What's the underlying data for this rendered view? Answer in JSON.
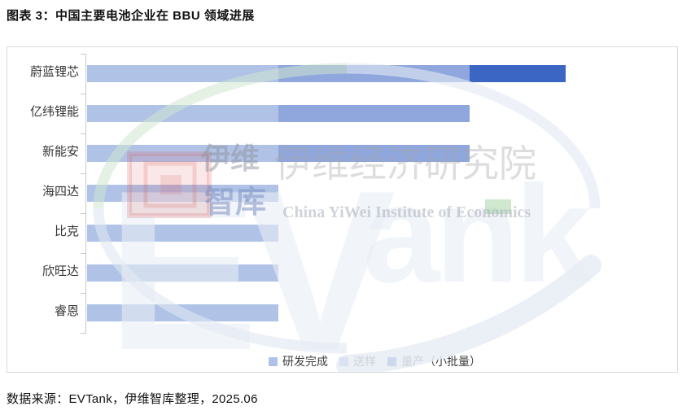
{
  "title": "图表 3：中国主要电池企业在 BBU 领域进展",
  "source": "数据来源：EVTank，伊维智库整理，2025.06",
  "chart_data": {
    "type": "bar",
    "orientation": "horizontal",
    "stacked": true,
    "title": "中国主要电池企业在BBU领域进展",
    "xlabel": "",
    "ylabel": "",
    "categories": [
      "蔚蓝锂芯",
      "亿纬锂能",
      "新能安",
      "海四达",
      "比克",
      "欣旺达",
      "睿恩"
    ],
    "series": [
      {
        "name": "研发完成",
        "color": "#b0c3e7",
        "values": [
          1,
          1,
          1,
          1,
          1,
          1,
          1
        ]
      },
      {
        "name": "送样",
        "color": "#8fa7dc",
        "values": [
          1,
          1,
          1,
          0,
          0,
          0,
          0
        ]
      },
      {
        "name": "量产（小批量）",
        "color": "#3b66c4",
        "values": [
          0.5,
          0,
          0,
          0,
          0,
          0,
          0
        ]
      }
    ],
    "xlim": [
      0,
      3.1
    ],
    "gridlines": false,
    "x_axis_tick_labels_visible": false,
    "legend_position": "bottom"
  },
  "legend_labels": [
    "研发完成",
    "送样",
    "量产（小批量）"
  ],
  "watermark": {
    "brand_cn": "伊维",
    "brand_cn_2": "智库",
    "institute_cn": "伊维经济研究院",
    "institute_en": "China YiWei Institute of Economics",
    "logo_text_ev": "EV",
    "logo_text_ank": "ank"
  },
  "accent_colors": {
    "stage1": "#b0c3e7",
    "stage2": "#8fa7dc",
    "stage3": "#3b66c4",
    "axis": "#c9c9c9",
    "box_border": "#d9d9d9"
  }
}
